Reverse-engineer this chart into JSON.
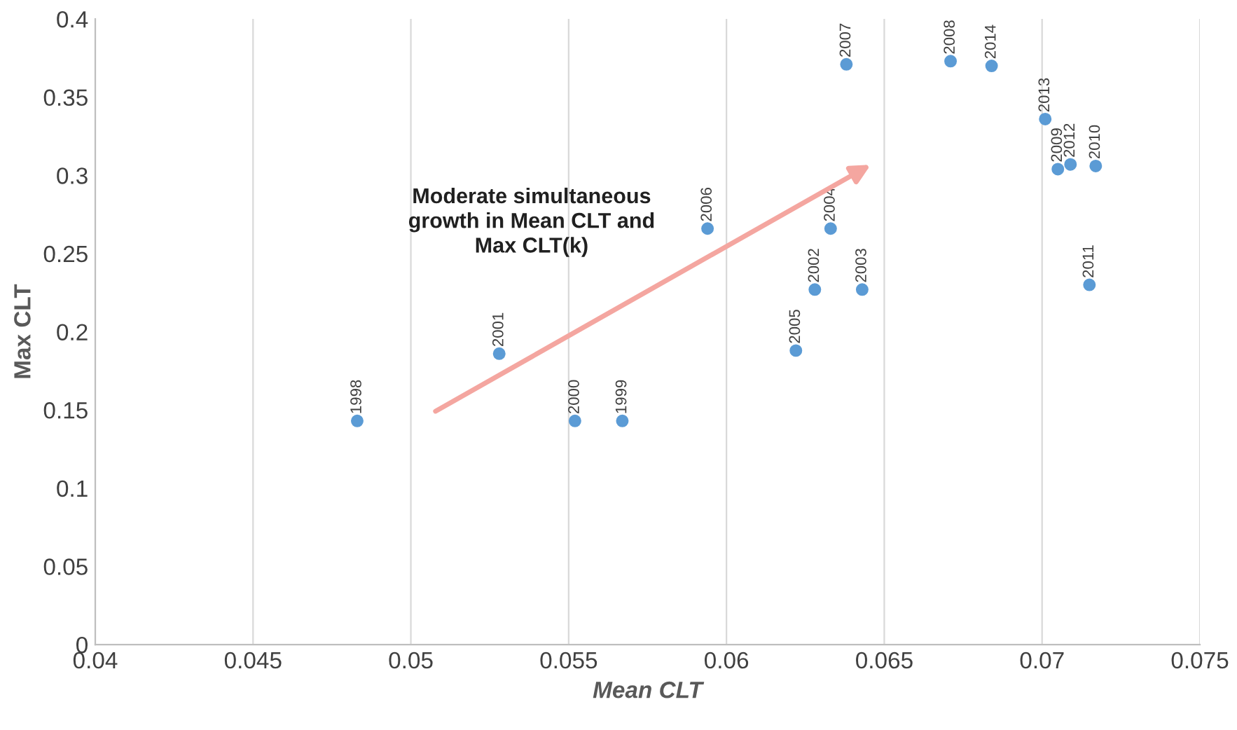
{
  "chart_data": {
    "type": "scatter",
    "xlabel": "Mean CLT",
    "ylabel": "Max CLT",
    "annotations": [
      "Moderate simultaneous\ngrowth in Mean CLT and\nMax CLT(k)"
    ],
    "xlim": [
      0.04,
      0.075
    ],
    "xticks": [
      0.04,
      0.045,
      0.05,
      0.055,
      0.06,
      0.065,
      0.07,
      0.075
    ],
    "ylim": [
      0,
      0.4
    ],
    "yticks": [
      0,
      0.05,
      0.1,
      0.15,
      0.2,
      0.25,
      0.3,
      0.35,
      0.4
    ],
    "grid": "x",
    "marker": "circle",
    "legend": false,
    "series": [
      {
        "name": "1998",
        "color": "#5b9bd5",
        "x": [
          0.0483
        ],
        "values": [
          0.143
        ]
      },
      {
        "name": "2001",
        "color": "#5b9bd5",
        "x": [
          0.0528
        ],
        "values": [
          0.186
        ]
      },
      {
        "name": "2000",
        "color": "#5b9bd5",
        "x": [
          0.0552
        ],
        "values": [
          0.143
        ]
      },
      {
        "name": "1999",
        "color": "#5b9bd5",
        "x": [
          0.0567
        ],
        "values": [
          0.143
        ]
      },
      {
        "name": "2006",
        "color": "#5b9bd5",
        "x": [
          0.0594
        ],
        "values": [
          0.266
        ]
      },
      {
        "name": "2005",
        "color": "#5b9bd5",
        "x": [
          0.0622
        ],
        "values": [
          0.188
        ]
      },
      {
        "name": "2002",
        "color": "#5b9bd5",
        "x": [
          0.0628
        ],
        "values": [
          0.227
        ]
      },
      {
        "name": "2004",
        "color": "#5b9bd5",
        "x": [
          0.0633
        ],
        "values": [
          0.266
        ]
      },
      {
        "name": "2003",
        "color": "#5b9bd5",
        "x": [
          0.0643
        ],
        "values": [
          0.227
        ]
      },
      {
        "name": "2007",
        "color": "#5b9bd5",
        "x": [
          0.0638
        ],
        "values": [
          0.371
        ]
      },
      {
        "name": "2008",
        "color": "#5b9bd5",
        "x": [
          0.0671
        ],
        "values": [
          0.373
        ]
      },
      {
        "name": "2014",
        "color": "#5b9bd5",
        "x": [
          0.0684
        ],
        "values": [
          0.37
        ]
      },
      {
        "name": "2013",
        "color": "#5b9bd5",
        "x": [
          0.0701
        ],
        "values": [
          0.336
        ]
      },
      {
        "name": "2009",
        "color": "#5b9bd5",
        "x": [
          0.0705
        ],
        "values": [
          0.304
        ]
      },
      {
        "name": "2012",
        "color": "#5b9bd5",
        "x": [
          0.0709
        ],
        "values": [
          0.307
        ]
      },
      {
        "name": "2010",
        "color": "#5b9bd5",
        "x": [
          0.0717
        ],
        "values": [
          0.306
        ]
      },
      {
        "name": "2011",
        "color": "#5b9bd5",
        "x": [
          0.0715
        ],
        "values": [
          0.23
        ]
      }
    ]
  }
}
